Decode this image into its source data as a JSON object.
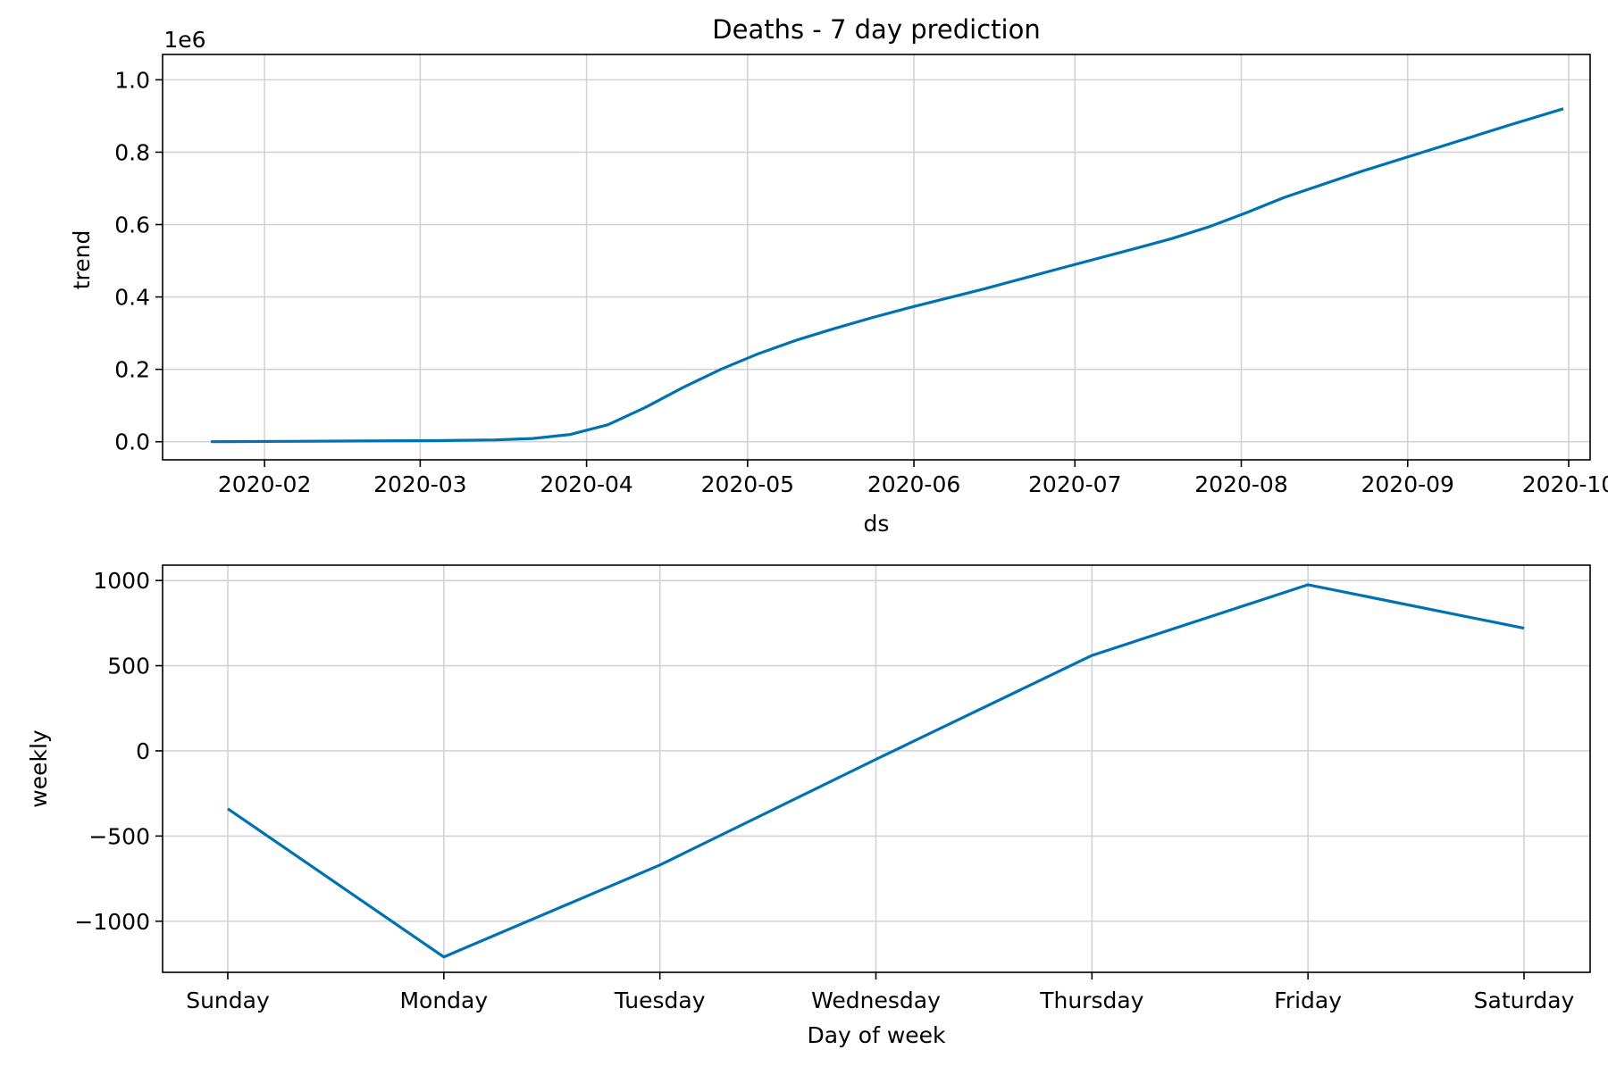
{
  "chart_data": [
    {
      "type": "line",
      "title": "Deaths - 7 day prediction",
      "xlabel": "ds",
      "ylabel": "trend",
      "y_multiplier_label": "1e6",
      "x_type": "date",
      "xlim": [
        "2020-01-13",
        "2020-10-05"
      ],
      "ylim": [
        -0.05,
        1.07
      ],
      "x_ticks": [
        "2020-02-01",
        "2020-03-01",
        "2020-04-01",
        "2020-05-01",
        "2020-06-01",
        "2020-07-01",
        "2020-08-01",
        "2020-09-01",
        "2020-10-01"
      ],
      "x_tick_labels": [
        "2020-02",
        "2020-03",
        "2020-04",
        "2020-05",
        "2020-06",
        "2020-07",
        "2020-08",
        "2020-09",
        "2020-10"
      ],
      "y_ticks": [
        0.0,
        0.2,
        0.4,
        0.6,
        0.8,
        1.0
      ],
      "y_tick_labels": [
        "0.0",
        "0.2",
        "0.4",
        "0.6",
        "0.8",
        "1.0"
      ],
      "grid": true,
      "color": "#0072B2",
      "series": [
        {
          "x": [
            "2020-01-22",
            "2020-02-05",
            "2020-02-19",
            "2020-03-04",
            "2020-03-15",
            "2020-03-22",
            "2020-03-29",
            "2020-04-05",
            "2020-04-12",
            "2020-04-19",
            "2020-04-26",
            "2020-05-03",
            "2020-05-10",
            "2020-05-17",
            "2020-05-24",
            "2020-05-31",
            "2020-06-14",
            "2020-06-28",
            "2020-07-12",
            "2020-07-19",
            "2020-07-26",
            "2020-08-02",
            "2020-08-09",
            "2020-08-23",
            "2020-09-06",
            "2020-09-20",
            "2020-09-30"
          ],
          "values": [
            0.0,
            0.001,
            0.002,
            0.003,
            0.005,
            0.009,
            0.02,
            0.047,
            0.095,
            0.15,
            0.2,
            0.243,
            0.28,
            0.312,
            0.342,
            0.37,
            0.422,
            0.478,
            0.533,
            0.561,
            0.594,
            0.633,
            0.675,
            0.745,
            0.81,
            0.875,
            0.92
          ]
        }
      ]
    },
    {
      "type": "line",
      "xlabel": "Day of week",
      "ylabel": "weekly",
      "ylim": [
        -1300,
        1090
      ],
      "categories": [
        "Sunday",
        "Monday",
        "Tuesday",
        "Wednesday",
        "Thursday",
        "Friday",
        "Saturday"
      ],
      "y_ticks": [
        -1000,
        -500,
        0,
        500,
        1000
      ],
      "y_tick_labels": [
        "−1000",
        "−500",
        "0",
        "500",
        "1000"
      ],
      "grid": true,
      "color": "#0072B2",
      "series": [
        {
          "values": [
            -340,
            -1210,
            -670,
            -50,
            560,
            975,
            720
          ]
        }
      ]
    }
  ]
}
